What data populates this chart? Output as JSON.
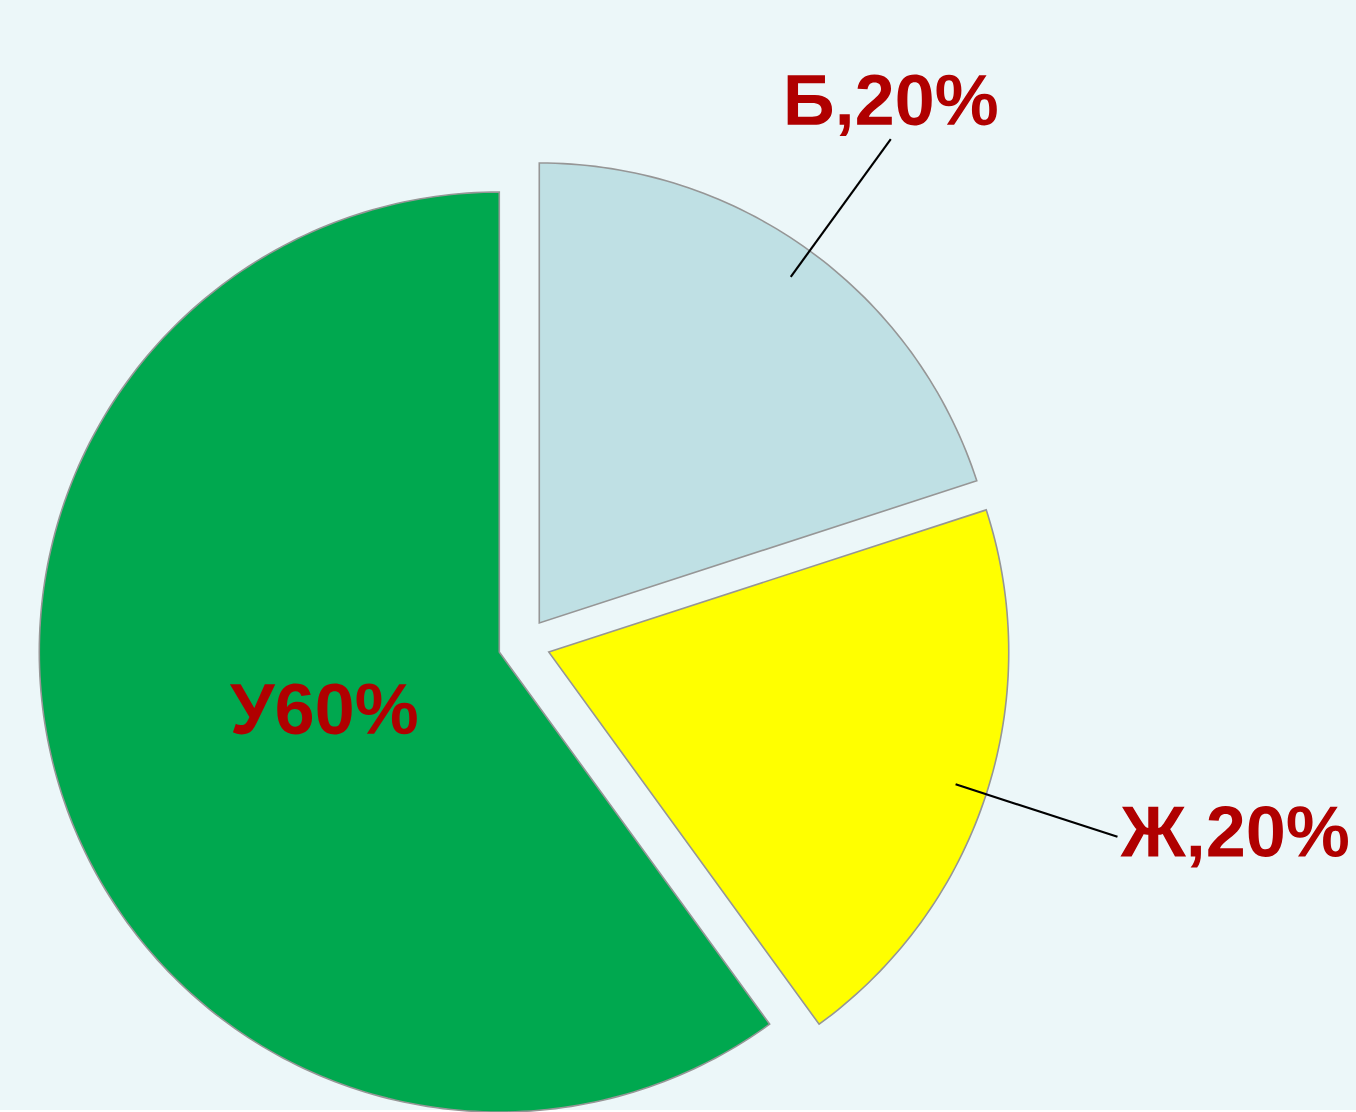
{
  "chart_data": {
    "type": "pie",
    "categories": [
      "Б",
      "Ж",
      "У"
    ],
    "values": [
      20,
      20,
      60
    ],
    "value_labels": [
      ",20%",
      ",20%",
      "60%"
    ],
    "colors": [
      "#bfe0e4",
      "#ffff00",
      "#00a84f"
    ]
  }
}
